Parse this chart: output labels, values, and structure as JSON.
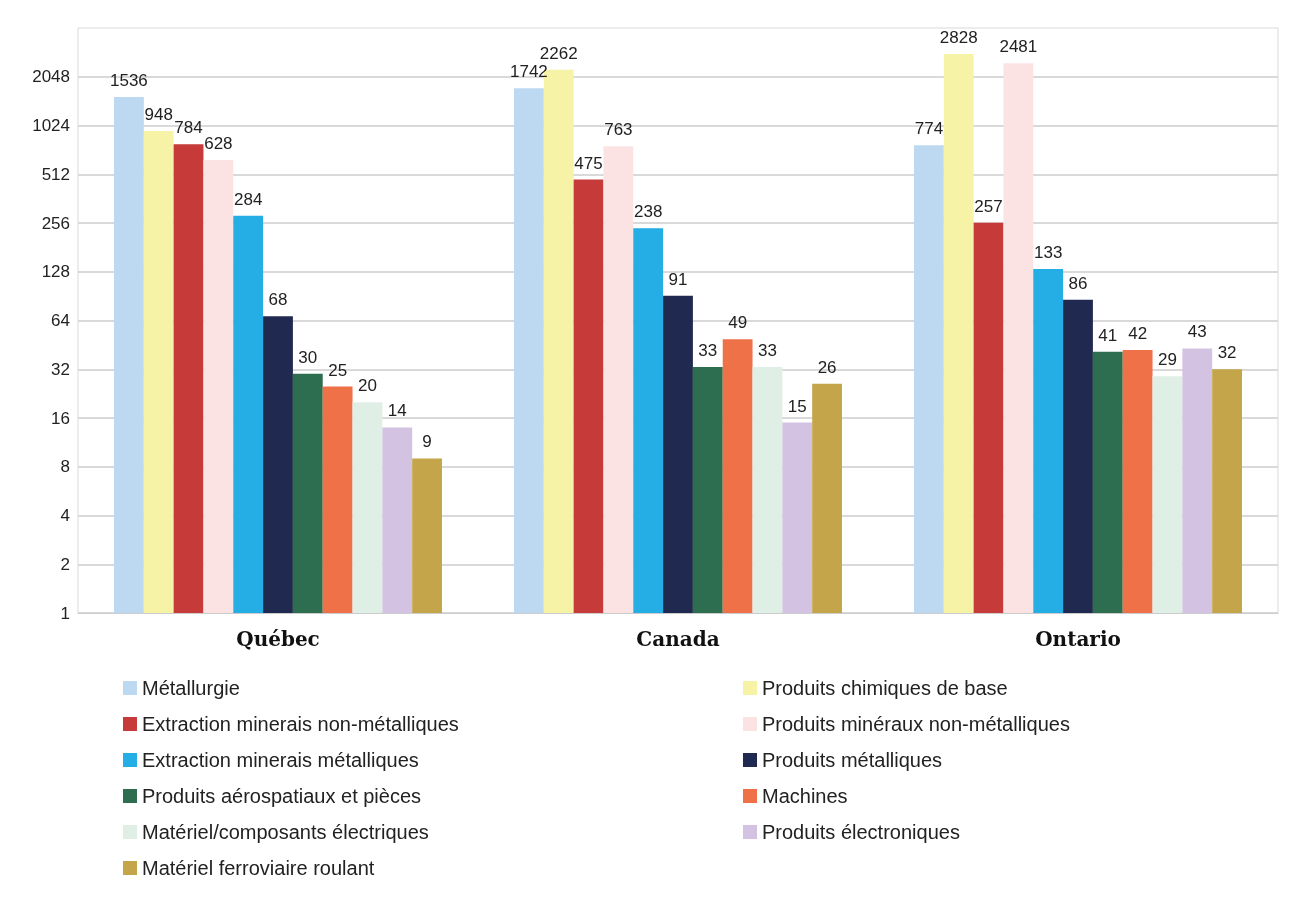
{
  "chart_data": {
    "type": "bar",
    "categories": [
      "Québec",
      "Canada",
      "Ontario"
    ],
    "log": "y",
    "ylim": [
      1,
      4096
    ],
    "yticks": [
      1,
      2,
      4,
      8,
      16,
      32,
      64,
      128,
      256,
      512,
      1024,
      2048
    ],
    "grid": "y",
    "legend": "bottom",
    "data_labels": true,
    "series": [
      {
        "name": "Métallurgie",
        "color": "#bdd9f2",
        "values": [
          1536,
          1742,
          774
        ]
      },
      {
        "name": "Produits chimiques de base",
        "color": "#f7f3a6",
        "values": [
          948,
          2262,
          2828
        ]
      },
      {
        "name": "Extraction minerais non-métalliques",
        "color": "#c63a3a",
        "values": [
          784,
          475,
          257
        ]
      },
      {
        "name": "Produits minéraux non-métalliques",
        "color": "#fbe3e3",
        "values": [
          628,
          763,
          2481
        ]
      },
      {
        "name": "Extraction minerais métalliques",
        "color": "#25ade6",
        "values": [
          284,
          238,
          133
        ]
      },
      {
        "name": "Produits métalliques",
        "color": "#202a50",
        "values": [
          68,
          91,
          86
        ]
      },
      {
        "name": "Produits aérospatiaux et pièces",
        "color": "#2c6e4f",
        "values": [
          30,
          33,
          41
        ]
      },
      {
        "name": "Machines",
        "color": "#ee7148",
        "values": [
          25,
          49,
          42
        ]
      },
      {
        "name": "Matériel/composants électriques",
        "color": "#dfefe6",
        "values": [
          20,
          33,
          29
        ]
      },
      {
        "name": "Produits électroniques",
        "color": "#d4c2e2",
        "values": [
          14,
          15,
          43
        ]
      },
      {
        "name": "Matériel ferroviaire roulant",
        "color": "#c4a54a",
        "values": [
          9,
          26,
          32
        ]
      }
    ]
  }
}
